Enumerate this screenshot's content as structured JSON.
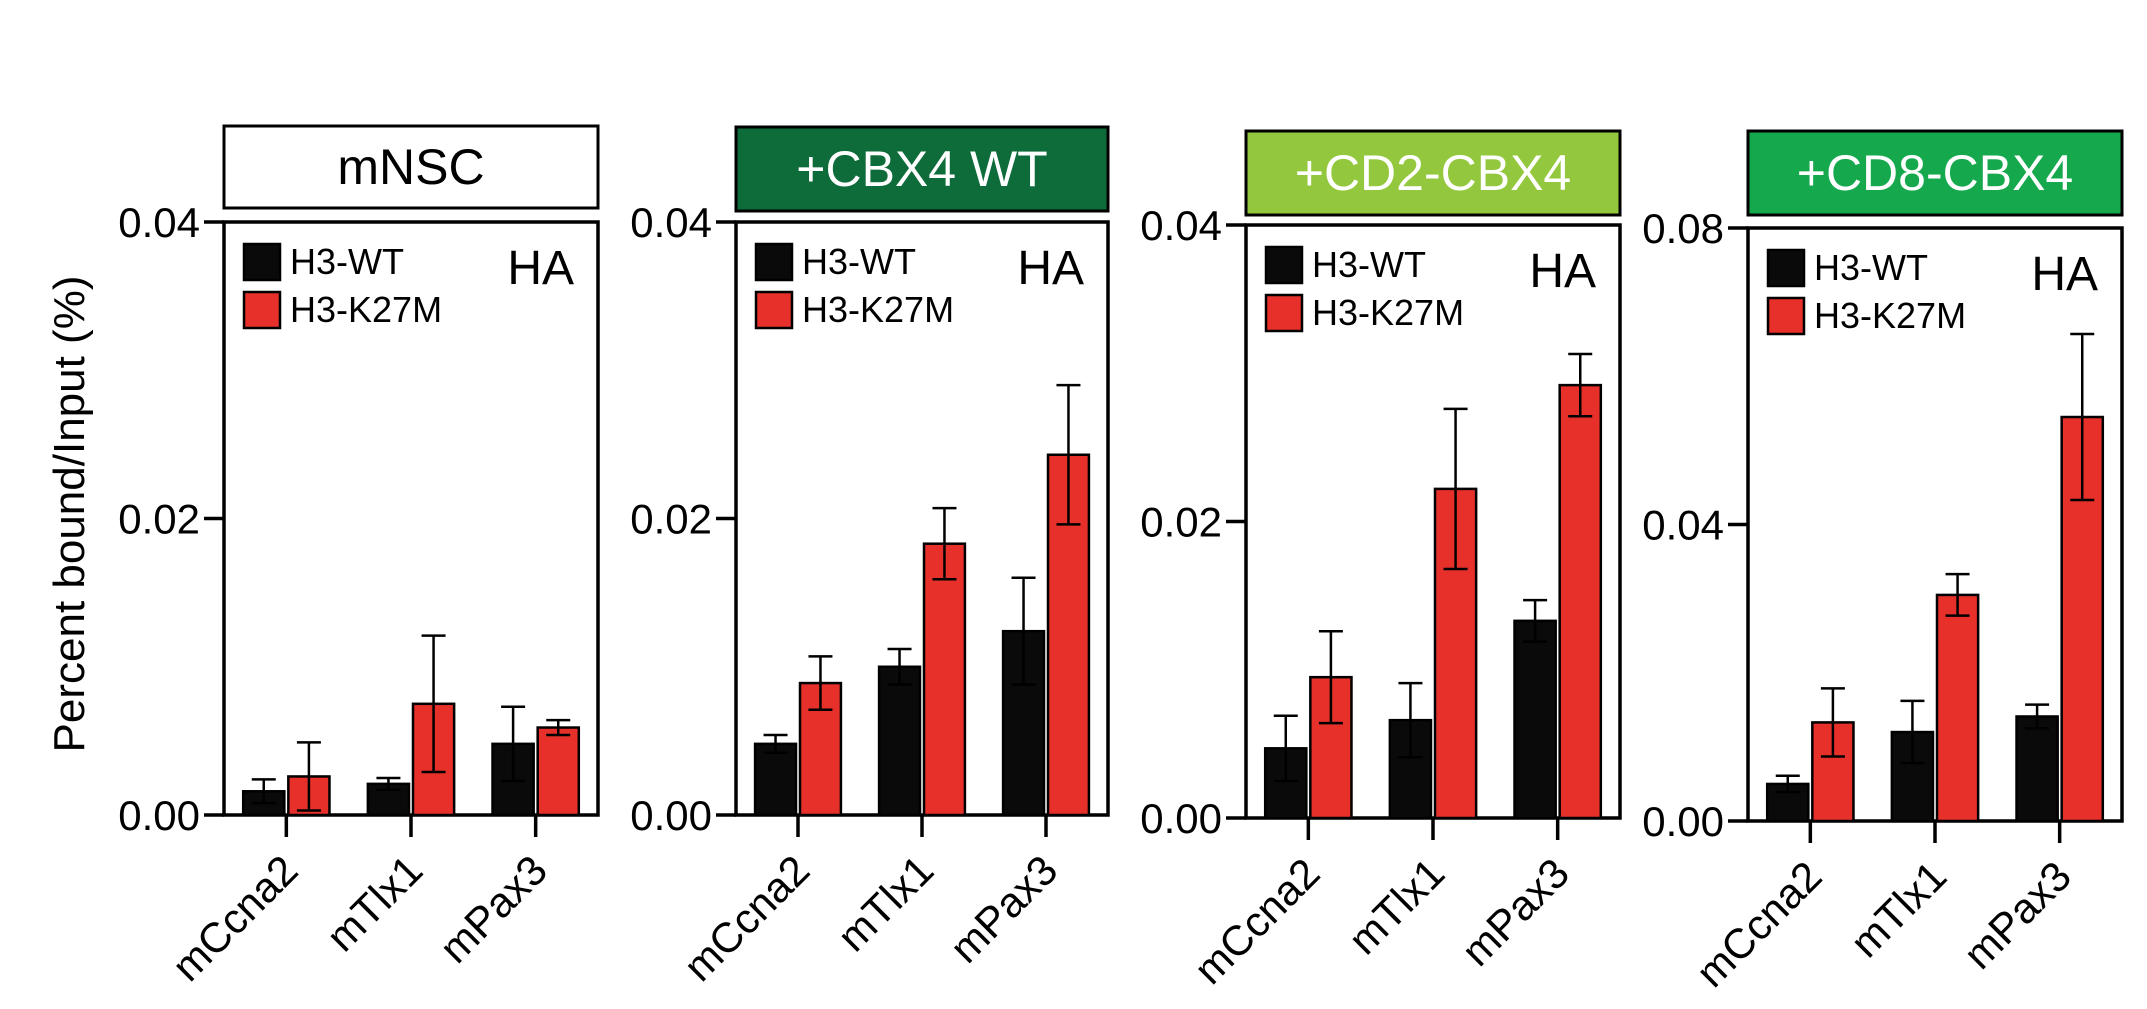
{
  "ylabel": "Percent bound/Input (%)",
  "colors": {
    "wt": "#0a0a0a",
    "k27m": "#e8302a",
    "axis": "#000000"
  },
  "chart_data": [
    {
      "type": "bar",
      "title": "mNSC",
      "title_color": "#ffffff",
      "title_text_color": "#000000",
      "annotation": "HA",
      "categories": [
        "mCcna2",
        "mTlx1",
        "mPax3"
      ],
      "ylim": [
        0,
        0.04
      ],
      "yticks": [
        0,
        0.02,
        0.04
      ],
      "ytick_labels": [
        "0.00",
        "0.02",
        "0.04"
      ],
      "legend_position": "top-left",
      "series": [
        {
          "name": "H3-WT",
          "values": [
            0.0016,
            0.0021,
            0.0048
          ],
          "errors": [
            0.0008,
            0.0004,
            0.0025
          ]
        },
        {
          "name": "H3-K27M",
          "values": [
            0.0026,
            0.0075,
            0.0059
          ],
          "errors": [
            0.0023,
            0.0046,
            0.0005
          ]
        }
      ]
    },
    {
      "type": "bar",
      "title": "+CBX4 WT",
      "title_color": "#0e6b3a",
      "title_text_color": "#ffffff",
      "annotation": "HA",
      "categories": [
        "mCcna2",
        "mTlx1",
        "mPax3"
      ],
      "ylim": [
        0,
        0.04
      ],
      "yticks": [
        0,
        0.02,
        0.04
      ],
      "ytick_labels": [
        "0.00",
        "0.02",
        "0.04"
      ],
      "legend_position": "top-left",
      "series": [
        {
          "name": "H3-WT",
          "values": [
            0.0048,
            0.01,
            0.0124
          ],
          "errors": [
            0.0006,
            0.0012,
            0.0036
          ]
        },
        {
          "name": "H3-K27M",
          "values": [
            0.0089,
            0.0183,
            0.0243
          ],
          "errors": [
            0.0018,
            0.0024,
            0.0047
          ]
        }
      ]
    },
    {
      "type": "bar",
      "title": "+CD2-CBX4",
      "title_color": "#93c83e",
      "title_text_color": "#ffffff",
      "annotation": "HA",
      "categories": [
        "mCcna2",
        "mTlx1",
        "mPax3"
      ],
      "ylim": [
        0,
        0.04
      ],
      "yticks": [
        0,
        0.02,
        0.04
      ],
      "ytick_labels": [
        "0.00",
        "0.02",
        "0.04"
      ],
      "legend_position": "top-left",
      "series": [
        {
          "name": "H3-WT",
          "values": [
            0.0047,
            0.0066,
            0.0133
          ],
          "errors": [
            0.0022,
            0.0025,
            0.0014
          ]
        },
        {
          "name": "H3-K27M",
          "values": [
            0.0095,
            0.0222,
            0.0292
          ],
          "errors": [
            0.0031,
            0.0054,
            0.0021
          ]
        }
      ]
    },
    {
      "type": "bar",
      "title": "+CD8-CBX4",
      "title_color": "#15a84d",
      "title_text_color": "#ffffff",
      "annotation": "HA",
      "categories": [
        "mCcna2",
        "mTlx1",
        "mPax3"
      ],
      "ylim": [
        0,
        0.08
      ],
      "yticks": [
        0,
        0.04,
        0.08
      ],
      "ytick_labels": [
        "0.00",
        "0.04",
        "0.08"
      ],
      "legend_position": "top-left",
      "series": [
        {
          "name": "H3-WT",
          "values": [
            0.005,
            0.012,
            0.0141
          ],
          "errors": [
            0.0011,
            0.0042,
            0.0016
          ]
        },
        {
          "name": "H3-K27M",
          "values": [
            0.0133,
            0.0305,
            0.0545
          ],
          "errors": [
            0.0046,
            0.0028,
            0.0112
          ]
        }
      ]
    }
  ]
}
